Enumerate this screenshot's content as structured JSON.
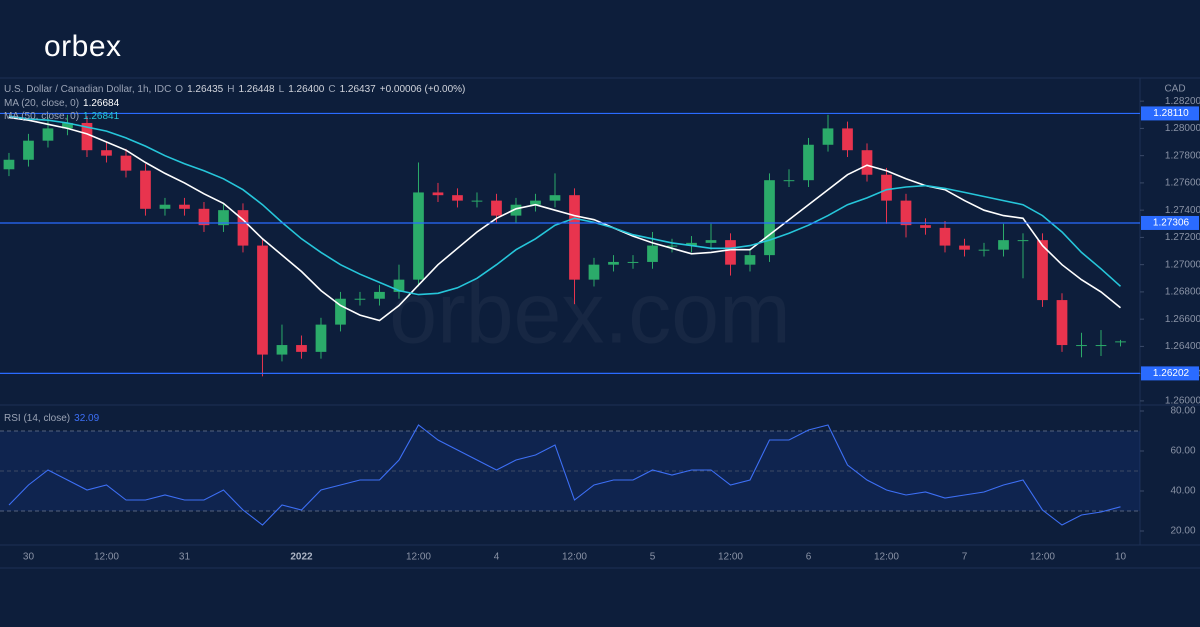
{
  "logo": "orbex",
  "watermark": "orbex.com",
  "chart_data": [
    {
      "type": "candlestick",
      "title": "U.S. Dollar / Canadian Dollar, 1h, IDC",
      "legend_items": [
        {
          "key": "O",
          "text": "1.26435"
        },
        {
          "key": "H",
          "text": "1.26448"
        },
        {
          "key": "L",
          "text": "1.26400"
        },
        {
          "key": "C",
          "text": "1.26437"
        }
      ],
      "change": "+0.00006 (+0.00%)",
      "currency": "CAD",
      "categories": [
        null,
        "30",
        null,
        null,
        null,
        "12:00",
        null,
        null,
        null,
        "31",
        null,
        null,
        null,
        null,
        null,
        "2022",
        null,
        null,
        null,
        null,
        null,
        "12:00",
        null,
        null,
        null,
        "4",
        null,
        null,
        null,
        "12:00",
        null,
        null,
        null,
        "5",
        null,
        null,
        null,
        "12:00",
        null,
        null,
        null,
        "6",
        null,
        null,
        null,
        "12:00",
        null,
        null,
        null,
        "7",
        null,
        null,
        null,
        "12:00",
        null,
        null,
        null,
        "10"
      ],
      "open": [
        1.277,
        1.2777,
        1.2791,
        1.28,
        1.2804,
        1.2784,
        1.278,
        1.2769,
        1.2741,
        1.2744,
        1.2741,
        1.2729,
        1.274,
        1.2714,
        1.2634,
        1.2641,
        1.2636,
        1.2656,
        1.2675,
        1.2675,
        1.268,
        1.2689,
        1.2753,
        1.2751,
        1.2747,
        1.2747,
        1.2736,
        1.2744,
        1.2747,
        1.2751,
        1.2689,
        1.27,
        1.2702,
        1.2702,
        1.2714,
        1.2714,
        1.2716,
        1.2718,
        1.27,
        1.2707,
        1.2762,
        1.2762,
        1.2788,
        1.28,
        1.2784,
        1.2766,
        1.2747,
        1.2729,
        1.2727,
        1.2714,
        1.2711,
        1.2711,
        1.2718,
        1.2718,
        1.2674,
        1.2641,
        1.2641,
        1.26435
      ],
      "high": [
        1.2782,
        1.2796,
        1.2808,
        1.281,
        1.2809,
        1.279,
        1.2785,
        1.2774,
        1.2749,
        1.2749,
        1.2746,
        1.2745,
        1.2745,
        1.2719,
        1.2656,
        1.2648,
        1.2661,
        1.268,
        1.268,
        1.2685,
        1.27,
        1.2775,
        1.276,
        1.2756,
        1.2753,
        1.2752,
        1.2749,
        1.2752,
        1.2767,
        1.2756,
        1.2705,
        1.2707,
        1.2707,
        1.2724,
        1.2719,
        1.2721,
        1.273,
        1.2723,
        1.2712,
        1.2767,
        1.277,
        1.2793,
        1.281,
        1.2805,
        1.2789,
        1.2771,
        1.2752,
        1.2734,
        1.2732,
        1.2719,
        1.2716,
        1.273,
        1.2723,
        1.2723,
        1.2679,
        1.265,
        1.2652,
        1.26448
      ],
      "low": [
        1.2765,
        1.2772,
        1.2786,
        1.2795,
        1.2779,
        1.2775,
        1.2764,
        1.2736,
        1.2736,
        1.2736,
        1.2724,
        1.2724,
        1.2709,
        1.2618,
        1.2629,
        1.2631,
        1.2631,
        1.2651,
        1.267,
        1.267,
        1.2675,
        1.2684,
        1.2746,
        1.2742,
        1.2742,
        1.2731,
        1.2731,
        1.2739,
        1.2742,
        1.2671,
        1.2684,
        1.2695,
        1.2697,
        1.2697,
        1.2709,
        1.2709,
        1.2711,
        1.2692,
        1.2695,
        1.2702,
        1.2757,
        1.2757,
        1.2783,
        1.2779,
        1.2761,
        1.273,
        1.272,
        1.2722,
        1.2709,
        1.2706,
        1.2706,
        1.2706,
        1.269,
        1.2669,
        1.2636,
        1.2632,
        1.2633,
        1.264
      ],
      "close": [
        1.2777,
        1.2791,
        1.28,
        1.2804,
        1.2784,
        1.278,
        1.2769,
        1.2741,
        1.2744,
        1.2741,
        1.2729,
        1.274,
        1.2714,
        1.2634,
        1.2641,
        1.2636,
        1.2656,
        1.2675,
        1.2675,
        1.268,
        1.2689,
        1.2753,
        1.2751,
        1.2747,
        1.2747,
        1.2736,
        1.2744,
        1.2747,
        1.2751,
        1.2689,
        1.27,
        1.2702,
        1.2702,
        1.2714,
        1.2714,
        1.2716,
        1.2718,
        1.27,
        1.2707,
        1.2762,
        1.2762,
        1.2788,
        1.28,
        1.2784,
        1.2766,
        1.2747,
        1.2729,
        1.2727,
        1.2714,
        1.2711,
        1.2711,
        1.2718,
        1.2718,
        1.2674,
        1.2641,
        1.2641,
        1.2641,
        1.26437
      ],
      "up_color": "#2bab6a",
      "down_color": "#e8344e",
      "series": [
        {
          "name": "MA (20, close, 0)",
          "color": "#ffffff",
          "values": [
            1.2808,
            1.2806,
            1.2803,
            1.28,
            1.2796,
            1.279,
            1.2784,
            1.2775,
            1.2767,
            1.276,
            1.2752,
            1.2745,
            1.2733,
            1.2719,
            1.2707,
            1.2695,
            1.2681,
            1.267,
            1.2663,
            1.2659,
            1.267,
            1.2685,
            1.27,
            1.2712,
            1.2724,
            1.2734,
            1.2741,
            1.2744,
            1.274,
            1.2736,
            1.2733,
            1.2727,
            1.2721,
            1.2716,
            1.2712,
            1.2708,
            1.2709,
            1.2711,
            1.2711,
            1.2722,
            1.2733,
            1.2744,
            1.2755,
            1.2766,
            1.2773,
            1.2769,
            1.2763,
            1.2758,
            1.2755,
            1.2747,
            1.274,
            1.2736,
            1.2734,
            1.2714,
            1.27,
            1.2689,
            1.268,
            1.26684
          ]
        },
        {
          "name": "MA (50, close, 0)",
          "color": "#26c6da",
          "values": [
            1.2809,
            1.2807,
            1.2806,
            1.2804,
            1.2801,
            1.2798,
            1.2793,
            1.2787,
            1.278,
            1.2774,
            1.2769,
            1.2763,
            1.2755,
            1.2744,
            1.2731,
            1.2719,
            1.2709,
            1.27,
            1.2693,
            1.2687,
            1.2681,
            1.2678,
            1.2679,
            1.2683,
            1.269,
            1.27,
            1.2711,
            1.2719,
            1.2729,
            1.2734,
            1.2731,
            1.2727,
            1.2722,
            1.2719,
            1.2716,
            1.2714,
            1.2712,
            1.2712,
            1.2714,
            1.2718,
            1.2723,
            1.2729,
            1.2736,
            1.2744,
            1.2749,
            1.2755,
            1.2757,
            1.2758,
            1.2756,
            1.2753,
            1.275,
            1.2747,
            1.2744,
            1.2736,
            1.2724,
            1.2709,
            1.2697,
            1.26841
          ]
        }
      ],
      "levels": [
        {
          "value": 1.2811,
          "label": "1.28110"
        },
        {
          "value": 1.27306,
          "label": "1.27306"
        },
        {
          "value": 1.26202,
          "label": "1.26202"
        }
      ],
      "level_color": "#2a6bff",
      "xlim": [
        -0.46,
        58
      ],
      "ylim": [
        1.2597,
        1.2837
      ],
      "yticks": [
        {
          "value": 1.26,
          "label": "1.26000"
        },
        {
          "value": 1.262,
          "label": "1.26200"
        },
        {
          "value": 1.264,
          "label": "1.26400"
        },
        {
          "value": 1.266,
          "label": "1.26600"
        },
        {
          "value": 1.268,
          "label": "1.26800"
        },
        {
          "value": 1.27,
          "label": "1.27000"
        },
        {
          "value": 1.272,
          "label": "1.27200"
        },
        {
          "value": 1.274,
          "label": "1.27400"
        },
        {
          "value": 1.276,
          "label": "1.27600"
        },
        {
          "value": 1.278,
          "label": "1.27800"
        },
        {
          "value": 1.28,
          "label": "1.28000"
        },
        {
          "value": 1.282,
          "label": "1.28200"
        }
      ]
    },
    {
      "type": "line",
      "series": [
        {
          "name": "RSI (14, close)",
          "color": "#3d6ff5",
          "values": [
            33,
            43,
            50.5,
            45.5,
            40.5,
            43,
            35.5,
            35.5,
            38,
            35.5,
            35.5,
            40.5,
            30.5,
            23,
            33,
            30.5,
            40.5,
            43,
            45.5,
            45.5,
            55.5,
            73,
            65.5,
            60.5,
            55.5,
            50.5,
            55.5,
            58,
            63,
            35.5,
            43,
            45.5,
            45.5,
            50.5,
            48,
            50.5,
            50.5,
            43,
            45.5,
            65.5,
            65.5,
            70.5,
            73,
            53,
            45.5,
            40.5,
            38,
            39.5,
            36.5,
            38,
            39.5,
            43,
            45.5,
            30.5,
            23,
            28,
            29.5,
            32.09
          ]
        }
      ],
      "bands": [
        30,
        70
      ],
      "midline": 50,
      "xlim": [
        -0.46,
        58
      ],
      "ylim": [
        13,
        83
      ],
      "yticks": [
        {
          "value": 20,
          "label": "20.00"
        },
        {
          "value": 40,
          "label": "40.00"
        },
        {
          "value": 60,
          "label": "60.00"
        },
        {
          "value": 80,
          "label": "80.00"
        }
      ]
    }
  ]
}
